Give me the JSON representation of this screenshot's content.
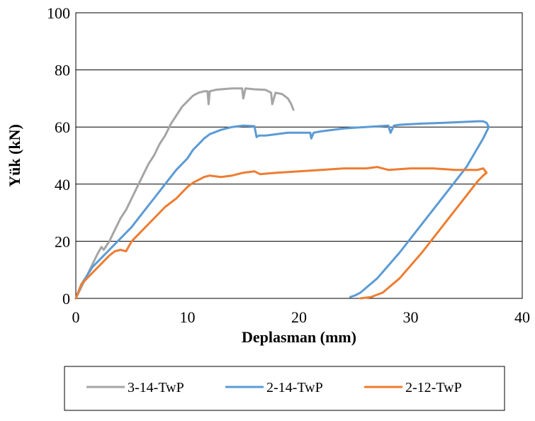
{
  "chart_data": {
    "type": "line",
    "title": "",
    "xlabel": "Deplasman (mm)",
    "ylabel": "Yük (kN)",
    "xlim": [
      0,
      40
    ],
    "ylim": [
      0,
      100
    ],
    "x_ticks": [
      0,
      10,
      20,
      30,
      40
    ],
    "y_ticks": [
      0,
      20,
      40,
      60,
      80,
      100
    ],
    "x_tick_labels": [
      "0",
      "10",
      "20",
      "30",
      "40"
    ],
    "y_tick_labels": [
      "0",
      "20",
      "40",
      "60",
      "80",
      "100"
    ],
    "grid": "horizontal major gridlines",
    "legend_position": "bottom",
    "series": [
      {
        "name": "3-14-TwP",
        "color": "#a5a5a5",
        "x": [
          0,
          0.5,
          1,
          1.5,
          2,
          2.3,
          2.5,
          3,
          3.5,
          4,
          4.5,
          5,
          5.5,
          6,
          6.5,
          7,
          7.5,
          8,
          8.5,
          9,
          9.5,
          10,
          10.5,
          11,
          11.5,
          11.8,
          11.9,
          12,
          12.5,
          13,
          14,
          14.9,
          15,
          15.2,
          16,
          17,
          17.5,
          17.6,
          17.9,
          18.5,
          19,
          19.3,
          19.5
        ],
        "y": [
          0,
          4,
          8,
          12,
          16,
          18,
          17,
          20,
          24,
          28,
          31,
          35,
          39,
          43,
          47,
          50,
          54,
          57,
          61,
          64,
          67,
          69,
          71,
          72,
          72.5,
          72.5,
          68,
          72.5,
          73,
          73.2,
          73.5,
          73.5,
          70,
          73.5,
          73.2,
          73,
          72,
          68,
          72,
          71.5,
          70,
          68,
          66
        ]
      },
      {
        "name": "2-14-TwP",
        "color": "#5b9bd5",
        "x": [
          0,
          0.5,
          1,
          1.5,
          2,
          2.5,
          3,
          3.5,
          4,
          5,
          6,
          7,
          8,
          9,
          10,
          10.5,
          11,
          11.5,
          12,
          13,
          14,
          15,
          16,
          16.2,
          16.4,
          17,
          18,
          19,
          20,
          21,
          21.1,
          21.3,
          22,
          24,
          26,
          28,
          28.2,
          28.5,
          29,
          31,
          33,
          35,
          36,
          36.5,
          36.8,
          37,
          36.5,
          35,
          33,
          31,
          29,
          27,
          25.5,
          25,
          24.6
        ],
        "y": [
          0,
          5,
          8,
          11,
          13,
          15,
          17,
          19,
          21,
          25,
          30,
          35,
          40,
          45,
          49,
          52,
          54,
          56,
          57.5,
          59,
          60,
          60.5,
          60.3,
          56.5,
          57,
          57,
          57.5,
          58,
          58,
          58,
          56,
          58,
          58.5,
          59.5,
          60,
          60.5,
          58,
          60.5,
          60.8,
          61.2,
          61.5,
          61.8,
          62,
          62,
          61.5,
          60,
          56,
          46,
          36,
          26,
          16,
          7,
          2,
          1,
          0.5
        ]
      },
      {
        "name": "2-12-TwP",
        "color": "#ed7d31",
        "x": [
          0,
          0.5,
          1,
          1.5,
          2,
          2.5,
          3,
          3.5,
          4,
          4.5,
          5,
          6,
          7,
          8,
          9,
          9.5,
          10,
          10.5,
          11,
          11.5,
          12,
          13,
          14,
          15,
          16,
          16.5,
          18,
          20,
          22,
          24,
          26,
          27,
          28,
          30,
          32,
          34,
          36,
          36.5,
          36.8,
          36.5,
          36,
          35,
          33,
          31,
          29,
          27.5,
          26.8,
          26.5,
          25.5
        ],
        "y": [
          0,
          5,
          7,
          9,
          11,
          13,
          15,
          16.5,
          17,
          16.5,
          20,
          24,
          28,
          32,
          35,
          37,
          39,
          40.5,
          41.5,
          42.5,
          43,
          42.5,
          43,
          44,
          44.5,
          43.5,
          44,
          44.5,
          45,
          45.5,
          45.5,
          46,
          45,
          45.5,
          45.5,
          45,
          45,
          45.5,
          44,
          43,
          41,
          36,
          26,
          16,
          7,
          2,
          1,
          0.5,
          0
        ]
      }
    ]
  }
}
